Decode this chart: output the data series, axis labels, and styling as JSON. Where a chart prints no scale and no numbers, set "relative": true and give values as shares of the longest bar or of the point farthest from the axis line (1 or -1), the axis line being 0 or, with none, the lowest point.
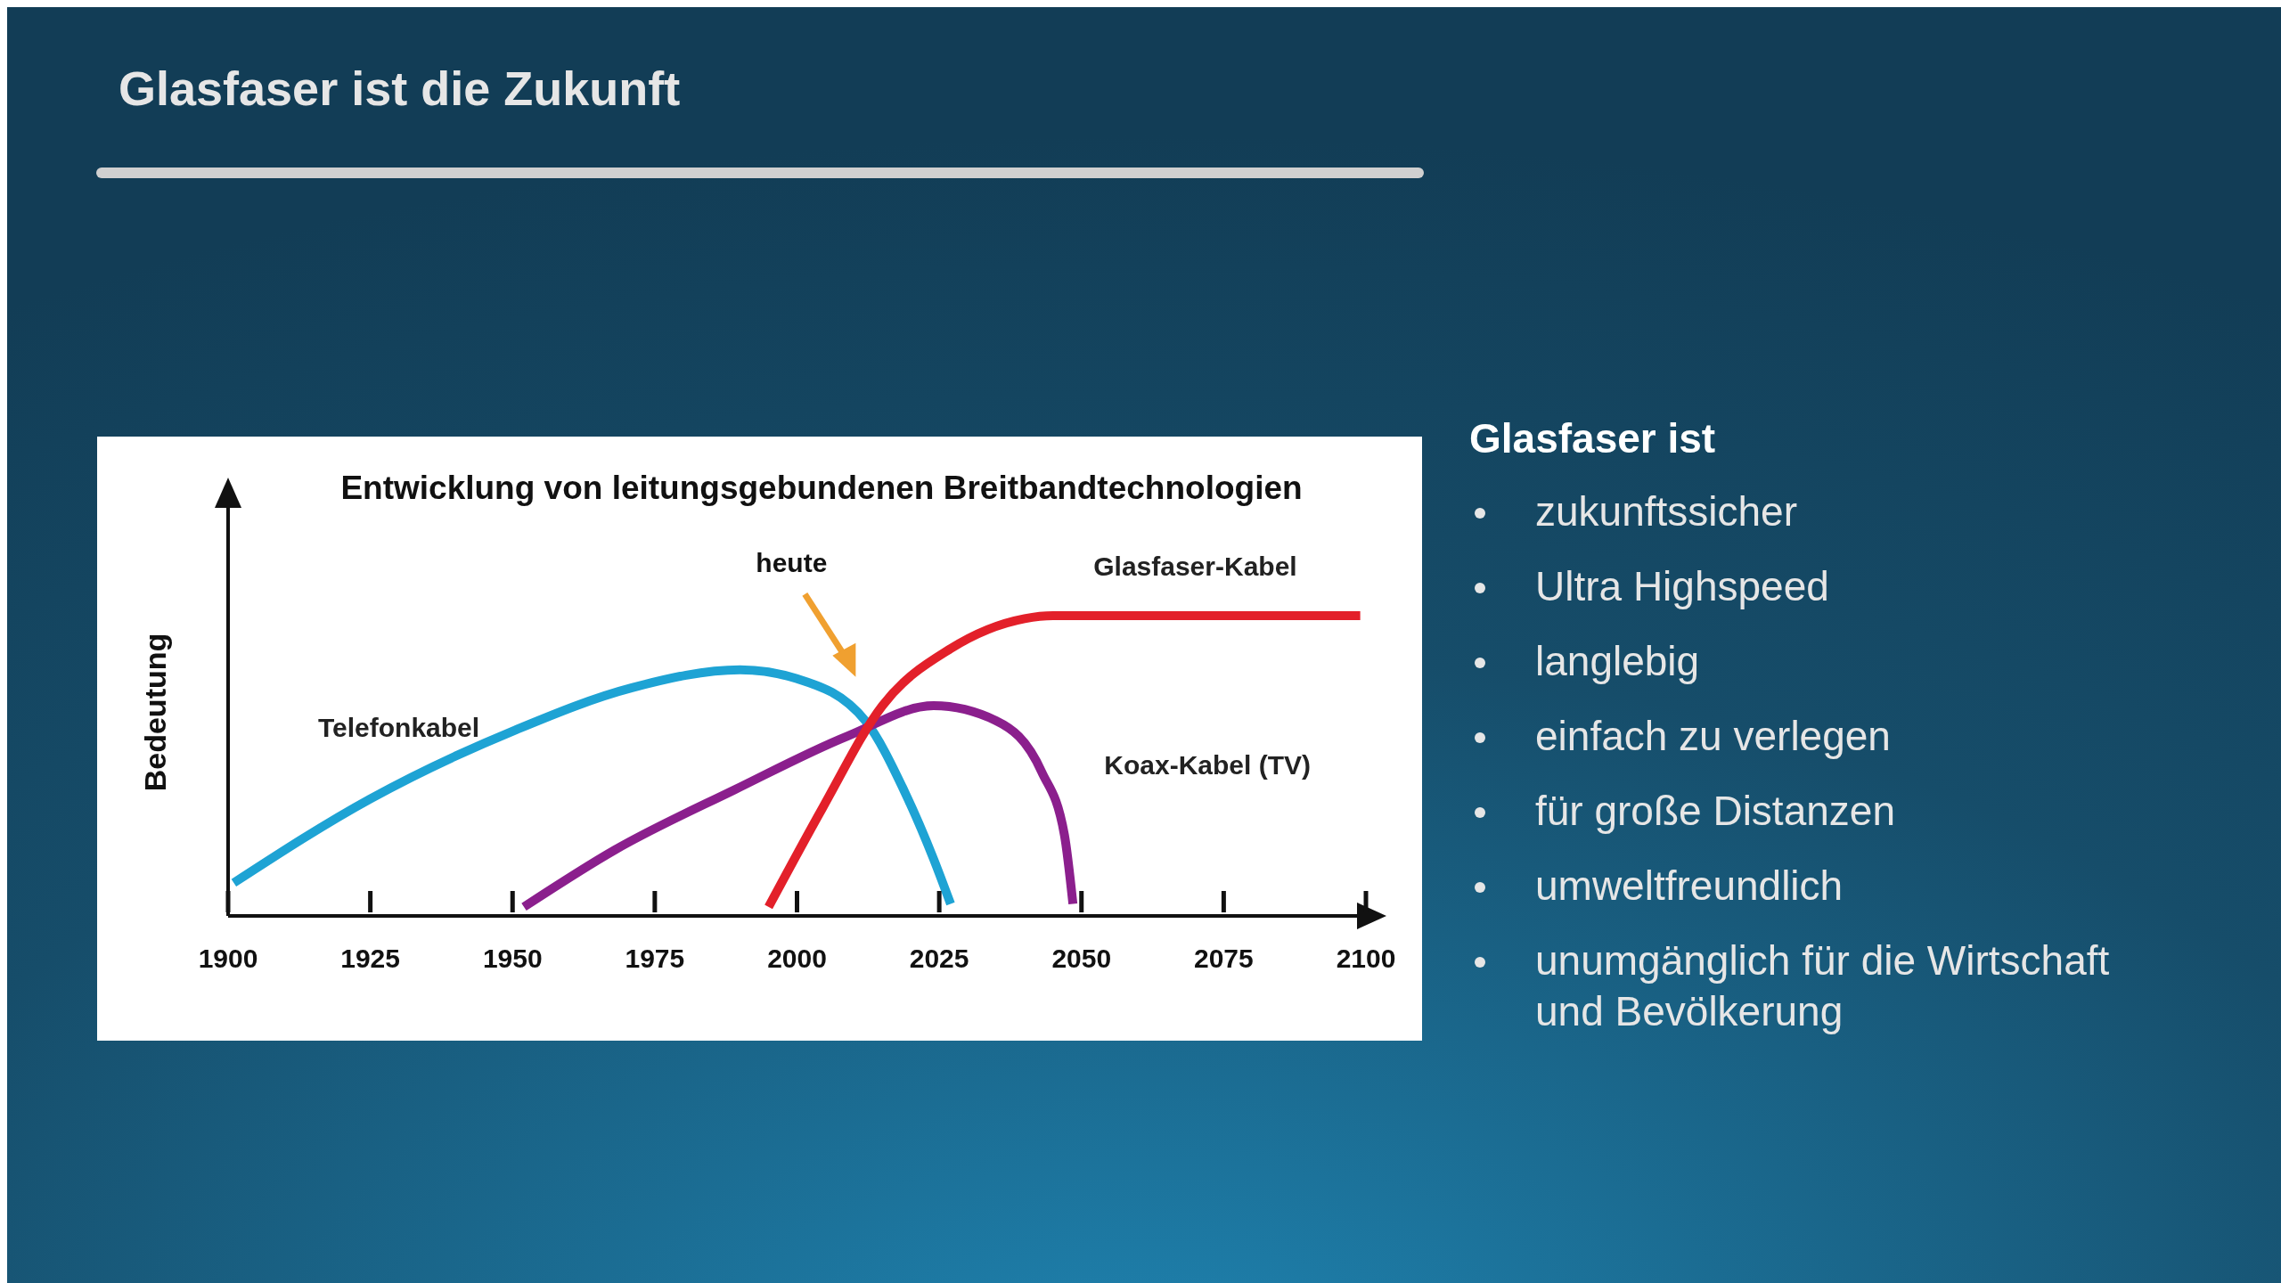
{
  "chart_data": [
    {
      "type": "other",
      "title": "Glasfaser ist die Zukunft"
    },
    {
      "type": "line",
      "title": "Entwicklung von leitungsgebundenen Breitbandtechnologien",
      "ylabel": "Bedeutung",
      "relative": true,
      "xlim": [
        1900,
        2100
      ],
      "xticks": [
        1900,
        1925,
        1950,
        1975,
        2000,
        2025,
        2050,
        2075,
        2100
      ],
      "tick_labels": "x",
      "legend": false,
      "grid": false,
      "marker": "none",
      "line_style": "solid",
      "annotations": [
        "heute"
      ],
      "series": [
        {
          "name": "Telefonkabel",
          "color": "#1ea3d4",
          "x": [
            1901,
            1925,
            1950.6,
            1971,
            1990,
            2000,
            2012,
            2019,
            2024,
            2027
          ],
          "values": [
            0.11,
            0.39,
            0.62,
            0.76,
            0.82,
            0.79,
            0.65,
            0.41,
            0.19,
            0.04
          ]
        },
        {
          "name": "Koax-Kabel (TV)",
          "color": "#8b1f8d",
          "x": [
            1952,
            1968,
            1989,
            2009,
            2024,
            2035,
            2043,
            2047,
            2048.5
          ],
          "values": [
            0.03,
            0.22,
            0.42,
            0.6,
            0.7,
            0.65,
            0.48,
            0.27,
            0.04
          ]
        },
        {
          "name": "Glasfaser-Kabel",
          "color": "#e3202a",
          "x": [
            1995,
            2004.5,
            2015,
            2027,
            2040,
            2045,
            2099
          ],
          "values": [
            0.03,
            0.36,
            0.7,
            0.89,
            0.99,
            1,
            1
          ]
        }
      ]
    },
    {
      "type": "other",
      "title": "Glasfaser ist",
      "annotations": [
        "zukunftssicher",
        "Ultra Highspeed",
        "langlebig",
        "einfach zu verlegen",
        "für große Distanzen",
        "umweltfreundlich",
        "unumgänglich für die Wirtschaft und Bevölkerung"
      ]
    }
  ]
}
